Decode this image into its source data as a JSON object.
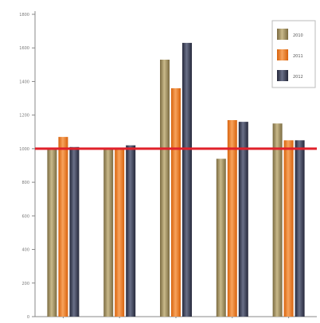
{
  "chart_data": {
    "type": "bar",
    "title": "",
    "xlabel": "",
    "ylabel": "",
    "categories": [
      "",
      "",
      "",
      "",
      ""
    ],
    "ylim": [
      0,
      1800
    ],
    "yticks": [
      0,
      200,
      400,
      600,
      800,
      1000,
      1200,
      1400,
      1600,
      1800
    ],
    "ytick_labels": [
      "0",
      "200",
      "400",
      "600",
      "800",
      "1000",
      "1200",
      "1400",
      "1600",
      "1800"
    ],
    "grid": false,
    "legend_position": "top-right",
    "series": [
      {
        "name": "2010",
        "color": "#9b8a5c",
        "values": [
          1000,
          1000,
          1530,
          940,
          1150
        ]
      },
      {
        "name": "2011",
        "color": "#f07b20",
        "values": [
          1070,
          1000,
          1360,
          1170,
          1050
        ]
      },
      {
        "name": "2012",
        "color": "#3c3f4e",
        "values": [
          1010,
          1020,
          1630,
          1160,
          1050
        ]
      }
    ],
    "reference_line": {
      "value": 1000,
      "color": "#e0202a"
    }
  }
}
